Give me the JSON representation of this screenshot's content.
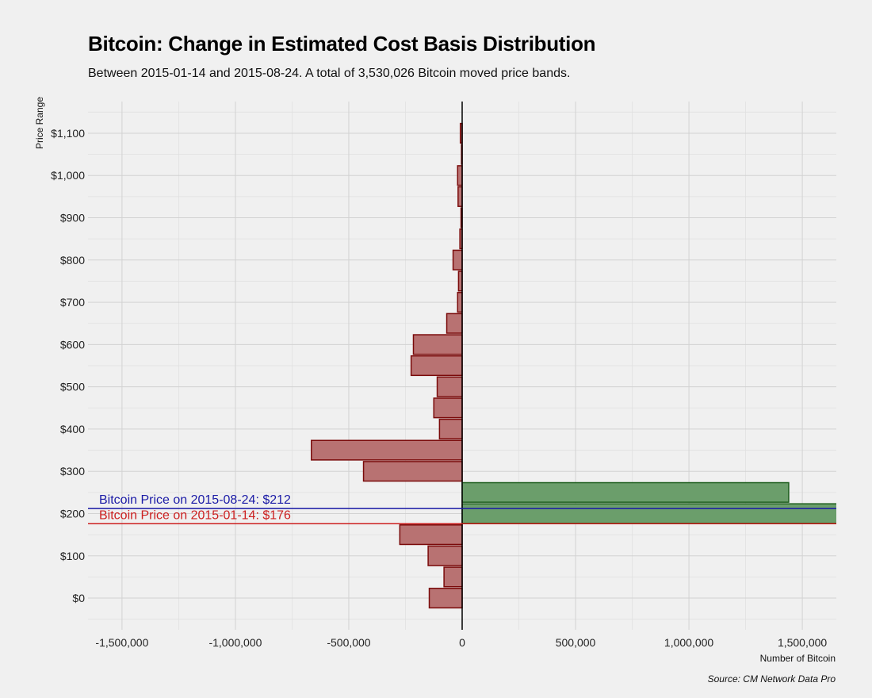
{
  "chart_data": {
    "type": "bar",
    "orientation": "horizontal",
    "title": "Bitcoin: Change in Estimated Cost Basis Distribution",
    "subtitle": "Between 2015-01-14 and 2015-08-24. A total of 3,530,026 Bitcoin moved price bands.",
    "xlabel": "Number of Bitcoin",
    "ylabel": "Price Range",
    "caption": "Source: CM Network Data Pro",
    "xlim": [
      -1650000,
      1650000
    ],
    "ylim": [
      -75,
      1175
    ],
    "grid": true,
    "x_ticks": [
      -1500000,
      -1000000,
      -500000,
      0,
      500000,
      1000000,
      1500000
    ],
    "x_tick_labels": [
      "-1,500,000",
      "-1,000,000",
      "-500,000",
      "0",
      "500,000",
      "1,000,000",
      "1,500,000"
    ],
    "y_ticks": [
      0,
      100,
      200,
      300,
      400,
      500,
      600,
      700,
      800,
      900,
      1000,
      1100
    ],
    "y_tick_labels": [
      "$0",
      "$100",
      "$200",
      "$300",
      "$400",
      "$500",
      "$600",
      "$700",
      "$800",
      "$900",
      "$1,000",
      "$1,100"
    ],
    "band_width": 50,
    "bars": [
      {
        "price": 0,
        "value": -145000
      },
      {
        "price": 50,
        "value": -80000
      },
      {
        "price": 100,
        "value": -150000
      },
      {
        "price": 150,
        "value": -275000
      },
      {
        "price": 200,
        "value": 1720000
      },
      {
        "price": 250,
        "value": 1440000
      },
      {
        "price": 300,
        "value": -435000
      },
      {
        "price": 350,
        "value": -665000
      },
      {
        "price": 400,
        "value": -100000
      },
      {
        "price": 450,
        "value": -125000
      },
      {
        "price": 500,
        "value": -110000
      },
      {
        "price": 550,
        "value": -225000
      },
      {
        "price": 600,
        "value": -215000
      },
      {
        "price": 650,
        "value": -68000
      },
      {
        "price": 700,
        "value": -20000
      },
      {
        "price": 750,
        "value": -16000
      },
      {
        "price": 800,
        "value": -40000
      },
      {
        "price": 850,
        "value": -10000
      },
      {
        "price": 900,
        "value": -5000
      },
      {
        "price": 950,
        "value": -18000
      },
      {
        "price": 1000,
        "value": -20000
      },
      {
        "price": 1050,
        "value": -3000
      },
      {
        "price": 1100,
        "value": -8000
      }
    ],
    "positive_fill": "#6b9e6b",
    "positive_stroke": "#1e5e1e",
    "negative_fill": "#b87272",
    "negative_stroke": "#7a0a0a",
    "annotations": [
      {
        "text": "Bitcoin Price on 2015-08-24: $212",
        "price": 212,
        "color": "#1a1aa6"
      },
      {
        "text": "Bitcoin Price on 2015-01-14: $176",
        "price": 176,
        "color": "#cc1f1f"
      }
    ]
  }
}
